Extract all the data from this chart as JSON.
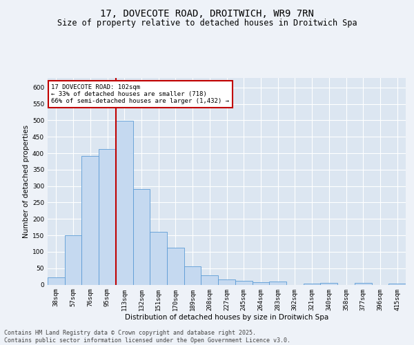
{
  "title_line1": "17, DOVECOTE ROAD, DROITWICH, WR9 7RN",
  "title_line2": "Size of property relative to detached houses in Droitwich Spa",
  "xlabel": "Distribution of detached houses by size in Droitwich Spa",
  "ylabel": "Number of detached properties",
  "categories": [
    "38sqm",
    "57sqm",
    "76sqm",
    "95sqm",
    "113sqm",
    "132sqm",
    "151sqm",
    "170sqm",
    "189sqm",
    "208sqm",
    "227sqm",
    "245sqm",
    "264sqm",
    "283sqm",
    "302sqm",
    "321sqm",
    "340sqm",
    "358sqm",
    "377sqm",
    "396sqm",
    "415sqm"
  ],
  "values": [
    22,
    150,
    392,
    412,
    498,
    290,
    160,
    112,
    56,
    28,
    15,
    12,
    7,
    10,
    0,
    3,
    5,
    0,
    5,
    0,
    3
  ],
  "bar_color": "#c5d9f0",
  "bar_edge_color": "#5b9bd5",
  "vline_color": "#c00000",
  "annotation_text": "17 DOVECOTE ROAD: 102sqm\n← 33% of detached houses are smaller (718)\n66% of semi-detached houses are larger (1,432) →",
  "annotation_box_color": "#ffffff",
  "annotation_border_color": "#c00000",
  "ylim": [
    0,
    630
  ],
  "yticks": [
    0,
    50,
    100,
    150,
    200,
    250,
    300,
    350,
    400,
    450,
    500,
    550,
    600
  ],
  "footer_text": "Contains HM Land Registry data © Crown copyright and database right 2025.\nContains public sector information licensed under the Open Government Licence v3.0.",
  "bg_color": "#eef2f8",
  "plot_bg_color": "#dce6f1",
  "grid_color": "#ffffff",
  "title_fontsize": 10,
  "subtitle_fontsize": 8.5,
  "axis_label_fontsize": 7.5,
  "tick_fontsize": 6.5,
  "footer_fontsize": 6,
  "ann_fontsize": 6.5
}
